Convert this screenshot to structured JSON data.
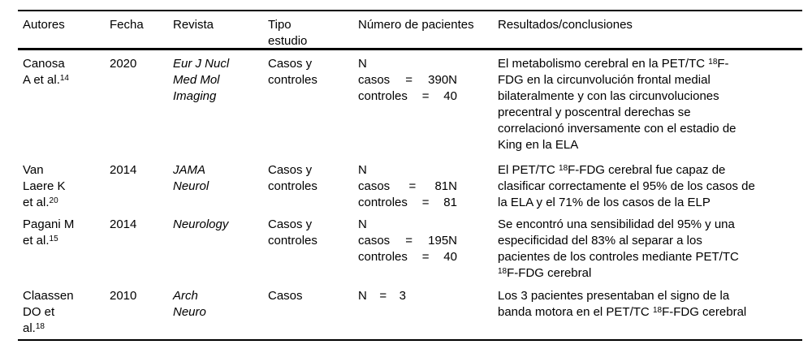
{
  "colors": {
    "text": "#000000",
    "background": "#ffffff",
    "rule": "#000000"
  },
  "table": {
    "headers": [
      "Autores",
      "Fecha",
      "Revista",
      "Tipo\nestudio",
      "Número de pacientes",
      "Resultados/conclusiones"
    ],
    "rows": [
      {
        "autores": "Canosa\nA et al.^{14}",
        "fecha": "2020",
        "revista": "Eur J Nucl\nMed Mol\nImaging",
        "tipo": "Casos y\ncontroles",
        "pacientes": {
          "eq_width": 122,
          "lines": [
            [
              "N"
            ],
            [
              "casos",
              "=",
              "390N"
            ],
            [
              "controles",
              "=",
              "40"
            ]
          ]
        },
        "resultados": "El metabolismo cerebral en la PET/TC ^{18}F-\nFDG en la circunvolución frontal medial\nbilateralmente y con las circunvoluciones\nprecentral y poscentral derechas se\ncorrelacionó inversamente con el estadio de\nKing en la ELA"
      },
      {
        "autores": "Van\nLaere K\net al.^{20}",
        "fecha": "2014",
        "revista": "JAMA\nNeurol",
        "tipo": "Casos y\ncontroles",
        "pacientes": {
          "eq_width": 122,
          "lines": [
            [
              "N"
            ],
            [
              "casos",
              "=",
              "81N"
            ],
            [
              "controles",
              "=",
              "81"
            ]
          ]
        },
        "resultados": "El PET/TC ^{18}F-FDG cerebral fue capaz de\nclasificar correctamente el 95% de los casos de\nla ELA y el 71% de los casos de la ELP"
      },
      {
        "autores": "Pagani M\net al.^{15}",
        "fecha": "2014",
        "revista": "Neurology",
        "tipo": "Casos y\ncontroles",
        "pacientes": {
          "eq_width": 122,
          "lines": [
            [
              "N"
            ],
            [
              "casos",
              "=",
              "195N"
            ],
            [
              "controles",
              "=",
              "40"
            ]
          ]
        },
        "resultados": "Se encontró una sensibilidad del 95% y una\nespecificidad del 83% al separar a los\npacientes de los controles mediante PET/TC\n^{18}F-FDG cerebral"
      },
      {
        "autores": "Claassen\nDO et\nal.^{18}",
        "fecha": "2010",
        "revista": "Arch\nNeuro",
        "tipo": "Casos",
        "pacientes": {
          "eq_width": 59,
          "lines": [
            [
              "N",
              "=",
              "3"
            ]
          ]
        },
        "resultados": "Los 3 pacientes presentaban el signo de la\nbanda motora en el PET/TC ^{18}F-FDG cerebral"
      }
    ]
  }
}
